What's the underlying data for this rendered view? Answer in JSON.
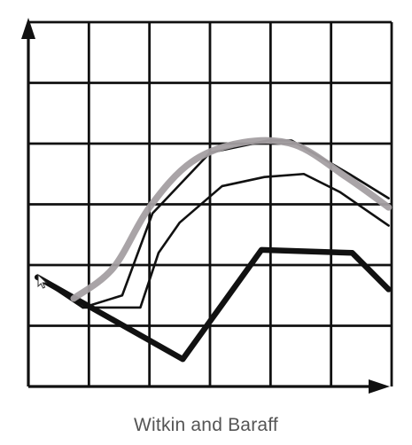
{
  "caption": "Witkin and Baraff",
  "chart_data": {
    "type": "line",
    "title": "",
    "xlabel": "",
    "ylabel": "",
    "grid": true,
    "xlim": [
      0,
      6
    ],
    "ylim": [
      0,
      6
    ],
    "series": [
      {
        "style": "thick-black",
        "color": "#111111",
        "points": [
          [
            0.15,
            1.8
          ],
          [
            0.95,
            1.35
          ],
          [
            2.55,
            0.45
          ],
          [
            3.85,
            2.25
          ],
          [
            5.35,
            2.2
          ],
          [
            5.95,
            1.6
          ]
        ]
      },
      {
        "style": "thin-black-lower",
        "color": "#111111",
        "points": [
          [
            0.15,
            1.8
          ],
          [
            0.9,
            1.3
          ],
          [
            1.85,
            1.3
          ],
          [
            2.15,
            2.2
          ],
          [
            2.5,
            2.7
          ],
          [
            3.2,
            3.3
          ],
          [
            3.9,
            3.45
          ],
          [
            4.55,
            3.5
          ],
          [
            5.15,
            3.2
          ],
          [
            5.95,
            2.65
          ]
        ]
      },
      {
        "style": "thin-black-upper",
        "color": "#111111",
        "points": [
          [
            0.9,
            1.3
          ],
          [
            1.55,
            1.5
          ],
          [
            2.05,
            2.85
          ],
          [
            3.0,
            3.85
          ],
          [
            3.95,
            4.05
          ],
          [
            4.35,
            4.05
          ],
          [
            5.3,
            3.5
          ],
          [
            5.95,
            3.1
          ]
        ]
      },
      {
        "style": "thick-gray",
        "color": "#a49fa2",
        "points": [
          [
            0.75,
            1.45
          ],
          [
            1.4,
            1.95
          ],
          [
            2.0,
            2.95
          ],
          [
            2.7,
            3.7
          ],
          [
            3.55,
            4.02
          ],
          [
            4.4,
            3.98
          ],
          [
            5.25,
            3.45
          ],
          [
            5.95,
            2.95
          ]
        ]
      }
    ]
  }
}
